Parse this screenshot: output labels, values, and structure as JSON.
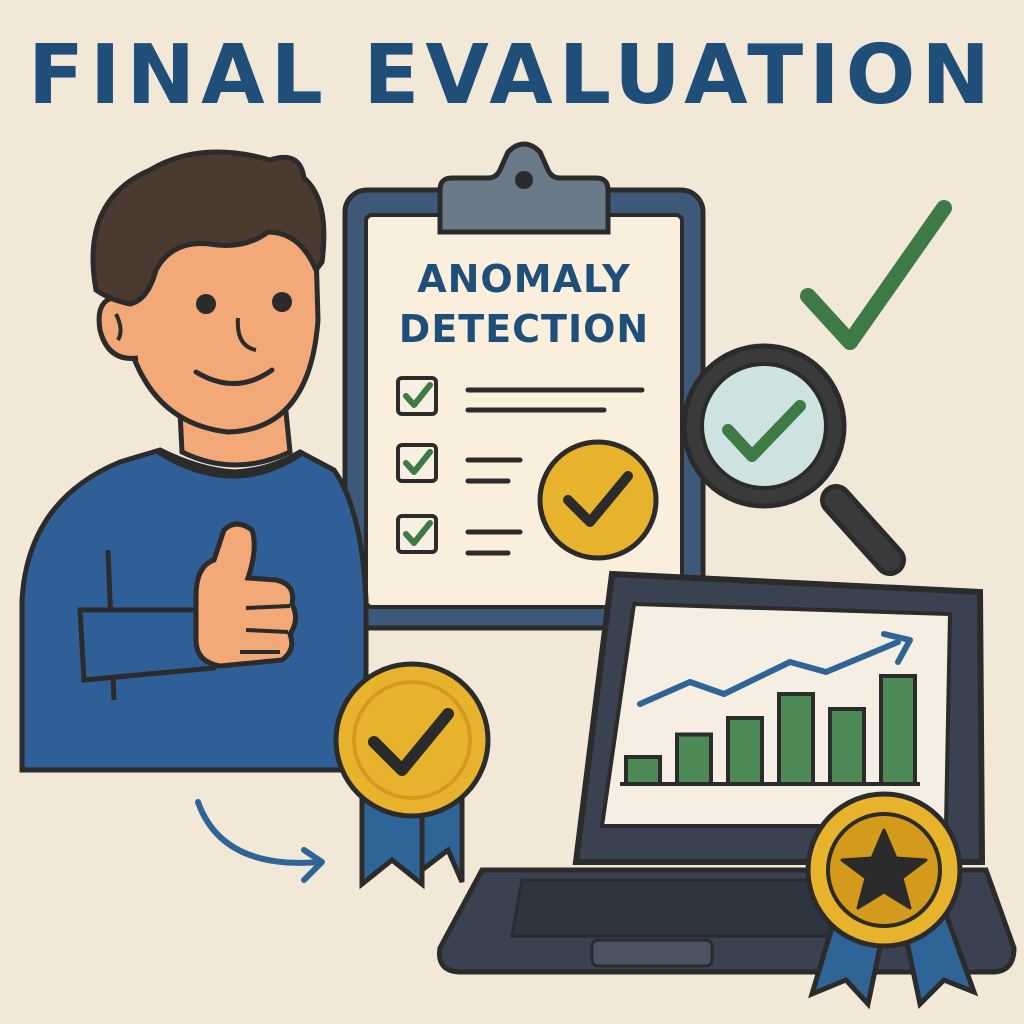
{
  "title": "FINAL EVALUATION",
  "clipboard": {
    "heading_line1": "ANOMALY",
    "heading_line2": "DETECTION",
    "checklist_items": 3
  },
  "laptop_chart": {
    "bar_levels": [
      0.18,
      0.33,
      0.44,
      0.6,
      0.5,
      0.72
    ],
    "trend": "upward"
  },
  "colors": {
    "background": "#f1e8d8",
    "title": "#1f4e79",
    "check_green": "#3e7a45",
    "badge_gold": "#e8b32c",
    "ribbon_blue": "#2f6496",
    "shirt_blue": "#2f5f96",
    "skin": "#f2a877",
    "outline": "#2b2b2b"
  },
  "icons": [
    "thumbs-up-icon",
    "checkmark-icon",
    "magnifier-icon",
    "award-badge-icon",
    "star-icon",
    "curved-arrow-icon",
    "bar-chart-icon"
  ]
}
